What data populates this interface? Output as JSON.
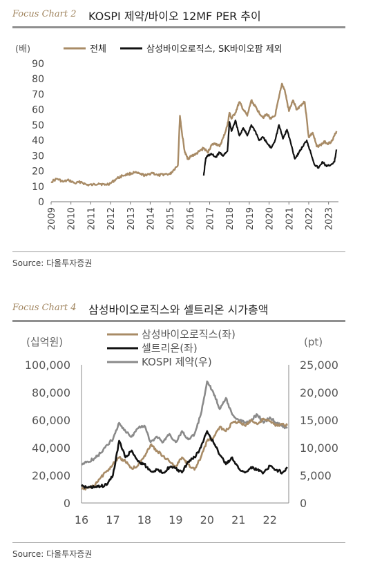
{
  "charts": [
    {
      "tag": "Focus Chart 2",
      "title": "KOSPI 제약/바이오 12MF PER 추이",
      "source": "Source:  다올투자증권"
    },
    {
      "tag": "Focus Chart 4",
      "title": "삼성바이오로직스와 셀트리온 시가총액",
      "source": "Source:  다올투자증권"
    }
  ],
  "chart_data": [
    {
      "type": "line",
      "ylabel": "(배)",
      "ylim": [
        0,
        90
      ],
      "yticks": [
        0,
        10,
        20,
        30,
        40,
        50,
        60,
        70,
        80,
        90
      ],
      "xlim": [
        2009,
        2023.5
      ],
      "xticks": [
        "2009",
        "2010",
        "2011",
        "2012",
        "2013",
        "2014",
        "2015",
        "2016",
        "2017",
        "2018",
        "2019",
        "2020",
        "2021",
        "2022",
        "2023"
      ],
      "legend_position": "top",
      "series": [
        {
          "name": "전체",
          "color": "#a88b66",
          "x": [
            2009.0,
            2009.3,
            2009.6,
            2009.9,
            2010.2,
            2010.5,
            2010.8,
            2011.1,
            2011.4,
            2011.7,
            2012.0,
            2012.3,
            2012.6,
            2012.9,
            2013.2,
            2013.5,
            2013.8,
            2014.1,
            2014.4,
            2014.7,
            2015.0,
            2015.2,
            2015.4,
            2015.5,
            2015.6,
            2015.75,
            2015.9,
            2016.1,
            2016.3,
            2016.5,
            2016.7,
            2016.9,
            2017.1,
            2017.3,
            2017.5,
            2017.7,
            2017.9,
            2018.0,
            2018.1,
            2018.3,
            2018.5,
            2018.7,
            2018.9,
            2019.1,
            2019.3,
            2019.5,
            2019.7,
            2019.9,
            2020.1,
            2020.3,
            2020.5,
            2020.65,
            2020.8,
            2021.0,
            2021.2,
            2021.4,
            2021.6,
            2021.8,
            2022.0,
            2022.2,
            2022.4,
            2022.6,
            2022.8,
            2023.0,
            2023.2,
            2023.4
          ],
          "y": [
            13,
            15,
            13,
            14,
            12,
            13,
            11,
            11,
            12,
            11,
            12,
            15,
            17,
            18,
            19,
            18,
            17,
            19,
            17,
            18,
            18,
            21,
            24,
            56,
            45,
            32,
            28,
            30,
            31,
            33,
            35,
            32,
            37,
            38,
            36,
            42,
            50,
            58,
            54,
            58,
            65,
            60,
            56,
            66,
            62,
            58,
            55,
            57,
            54,
            56,
            68,
            77,
            72,
            59,
            66,
            60,
            63,
            65,
            42,
            45,
            36,
            37,
            39,
            38,
            40,
            46
          ]
        },
        {
          "name": "삼성바이오로직스, SK바이오팜 제외",
          "color": "#111111",
          "x": [
            2016.7,
            2016.8,
            2016.9,
            2017.1,
            2017.3,
            2017.5,
            2017.7,
            2017.9,
            2018.0,
            2018.1,
            2018.3,
            2018.5,
            2018.7,
            2018.9,
            2019.1,
            2019.3,
            2019.5,
            2019.7,
            2019.9,
            2020.1,
            2020.3,
            2020.5,
            2020.7,
            2020.9,
            2021.1,
            2021.3,
            2021.5,
            2021.7,
            2021.9,
            2022.1,
            2022.3,
            2022.5,
            2022.7,
            2022.9,
            2023.1,
            2023.3,
            2023.4
          ],
          "y": [
            17,
            28,
            30,
            31,
            29,
            32,
            30,
            33,
            52,
            46,
            53,
            43,
            48,
            43,
            50,
            46,
            40,
            42,
            38,
            35,
            40,
            50,
            41,
            47,
            38,
            28,
            32,
            36,
            40,
            32,
            24,
            22,
            26,
            23,
            24,
            26,
            34
          ]
        }
      ]
    },
    {
      "type": "line",
      "ylabel_left": "(십억원)",
      "ylabel_right": "(pt)",
      "ylim_left": [
        0,
        100000
      ],
      "ylim_right": [
        0,
        25000
      ],
      "yticks_left": [
        "0",
        "20,000",
        "40,000",
        "60,000",
        "80,000",
        "100,000"
      ],
      "yticks_right": [
        "0",
        "5,000",
        "10,000",
        "15,000",
        "20,000",
        "25,000"
      ],
      "xlim": [
        16,
        22.6
      ],
      "xticks": [
        "16",
        "17",
        "18",
        "19",
        "20",
        "21",
        "22"
      ],
      "legend_position": "top-left",
      "series": [
        {
          "name": "삼성바이오로직스(좌)",
          "color": "#a88b66",
          "axis": "left",
          "x": [
            16.0,
            16.2,
            16.4,
            16.6,
            16.8,
            17.0,
            17.2,
            17.4,
            17.6,
            17.8,
            18.0,
            18.2,
            18.4,
            18.6,
            18.8,
            19.0,
            19.2,
            19.4,
            19.6,
            19.8,
            20.0,
            20.2,
            20.4,
            20.6,
            20.8,
            21.0,
            21.2,
            21.4,
            21.6,
            21.8,
            22.0,
            22.2,
            22.4,
            22.55
          ],
          "y": [
            10000,
            11000,
            12000,
            18000,
            23000,
            28000,
            33000,
            30000,
            25000,
            27000,
            34000,
            42000,
            38000,
            34000,
            30000,
            26000,
            33000,
            28000,
            24000,
            33000,
            45000,
            47000,
            55000,
            52000,
            58000,
            59000,
            56000,
            60000,
            57000,
            61000,
            59000,
            56000,
            57000,
            56000
          ]
        },
        {
          "name": "셀트리온(좌)",
          "color": "#111111",
          "axis": "left",
          "x": [
            16.0,
            16.2,
            16.4,
            16.6,
            16.8,
            17.0,
            17.2,
            17.4,
            17.6,
            17.8,
            18.0,
            18.2,
            18.4,
            18.6,
            18.8,
            19.0,
            19.2,
            19.4,
            19.6,
            19.8,
            20.0,
            20.2,
            20.4,
            20.6,
            20.8,
            21.0,
            21.2,
            21.4,
            21.6,
            21.8,
            22.0,
            22.2,
            22.4,
            22.55
          ],
          "y": [
            12000,
            11000,
            11500,
            12000,
            13000,
            20000,
            45000,
            33000,
            38000,
            30000,
            28000,
            23000,
            24000,
            22000,
            26000,
            25000,
            22000,
            30000,
            33000,
            40000,
            52000,
            44000,
            35000,
            28000,
            33000,
            25000,
            22000,
            26000,
            24000,
            22000,
            27000,
            24000,
            22000,
            26000
          ]
        },
        {
          "name": "KOSPI 제약(우)",
          "color": "#8a8a8a",
          "axis": "right",
          "x": [
            16.0,
            16.2,
            16.4,
            16.6,
            16.8,
            17.0,
            17.2,
            17.4,
            17.6,
            17.8,
            18.0,
            18.2,
            18.4,
            18.6,
            18.8,
            19.0,
            19.2,
            19.4,
            19.6,
            19.8,
            20.0,
            20.2,
            20.4,
            20.6,
            20.8,
            21.0,
            21.2,
            21.4,
            21.6,
            21.8,
            22.0,
            22.2,
            22.4,
            22.55
          ],
          "y": [
            7000,
            7500,
            8000,
            9000,
            10500,
            11500,
            14500,
            13000,
            12000,
            13500,
            14000,
            11000,
            12000,
            11000,
            12500,
            11000,
            13000,
            11500,
            12500,
            16000,
            22000,
            20000,
            17000,
            19000,
            16000,
            15000,
            14500,
            15000,
            16000,
            14500,
            15500,
            14500,
            14000,
            13500
          ]
        }
      ]
    }
  ]
}
